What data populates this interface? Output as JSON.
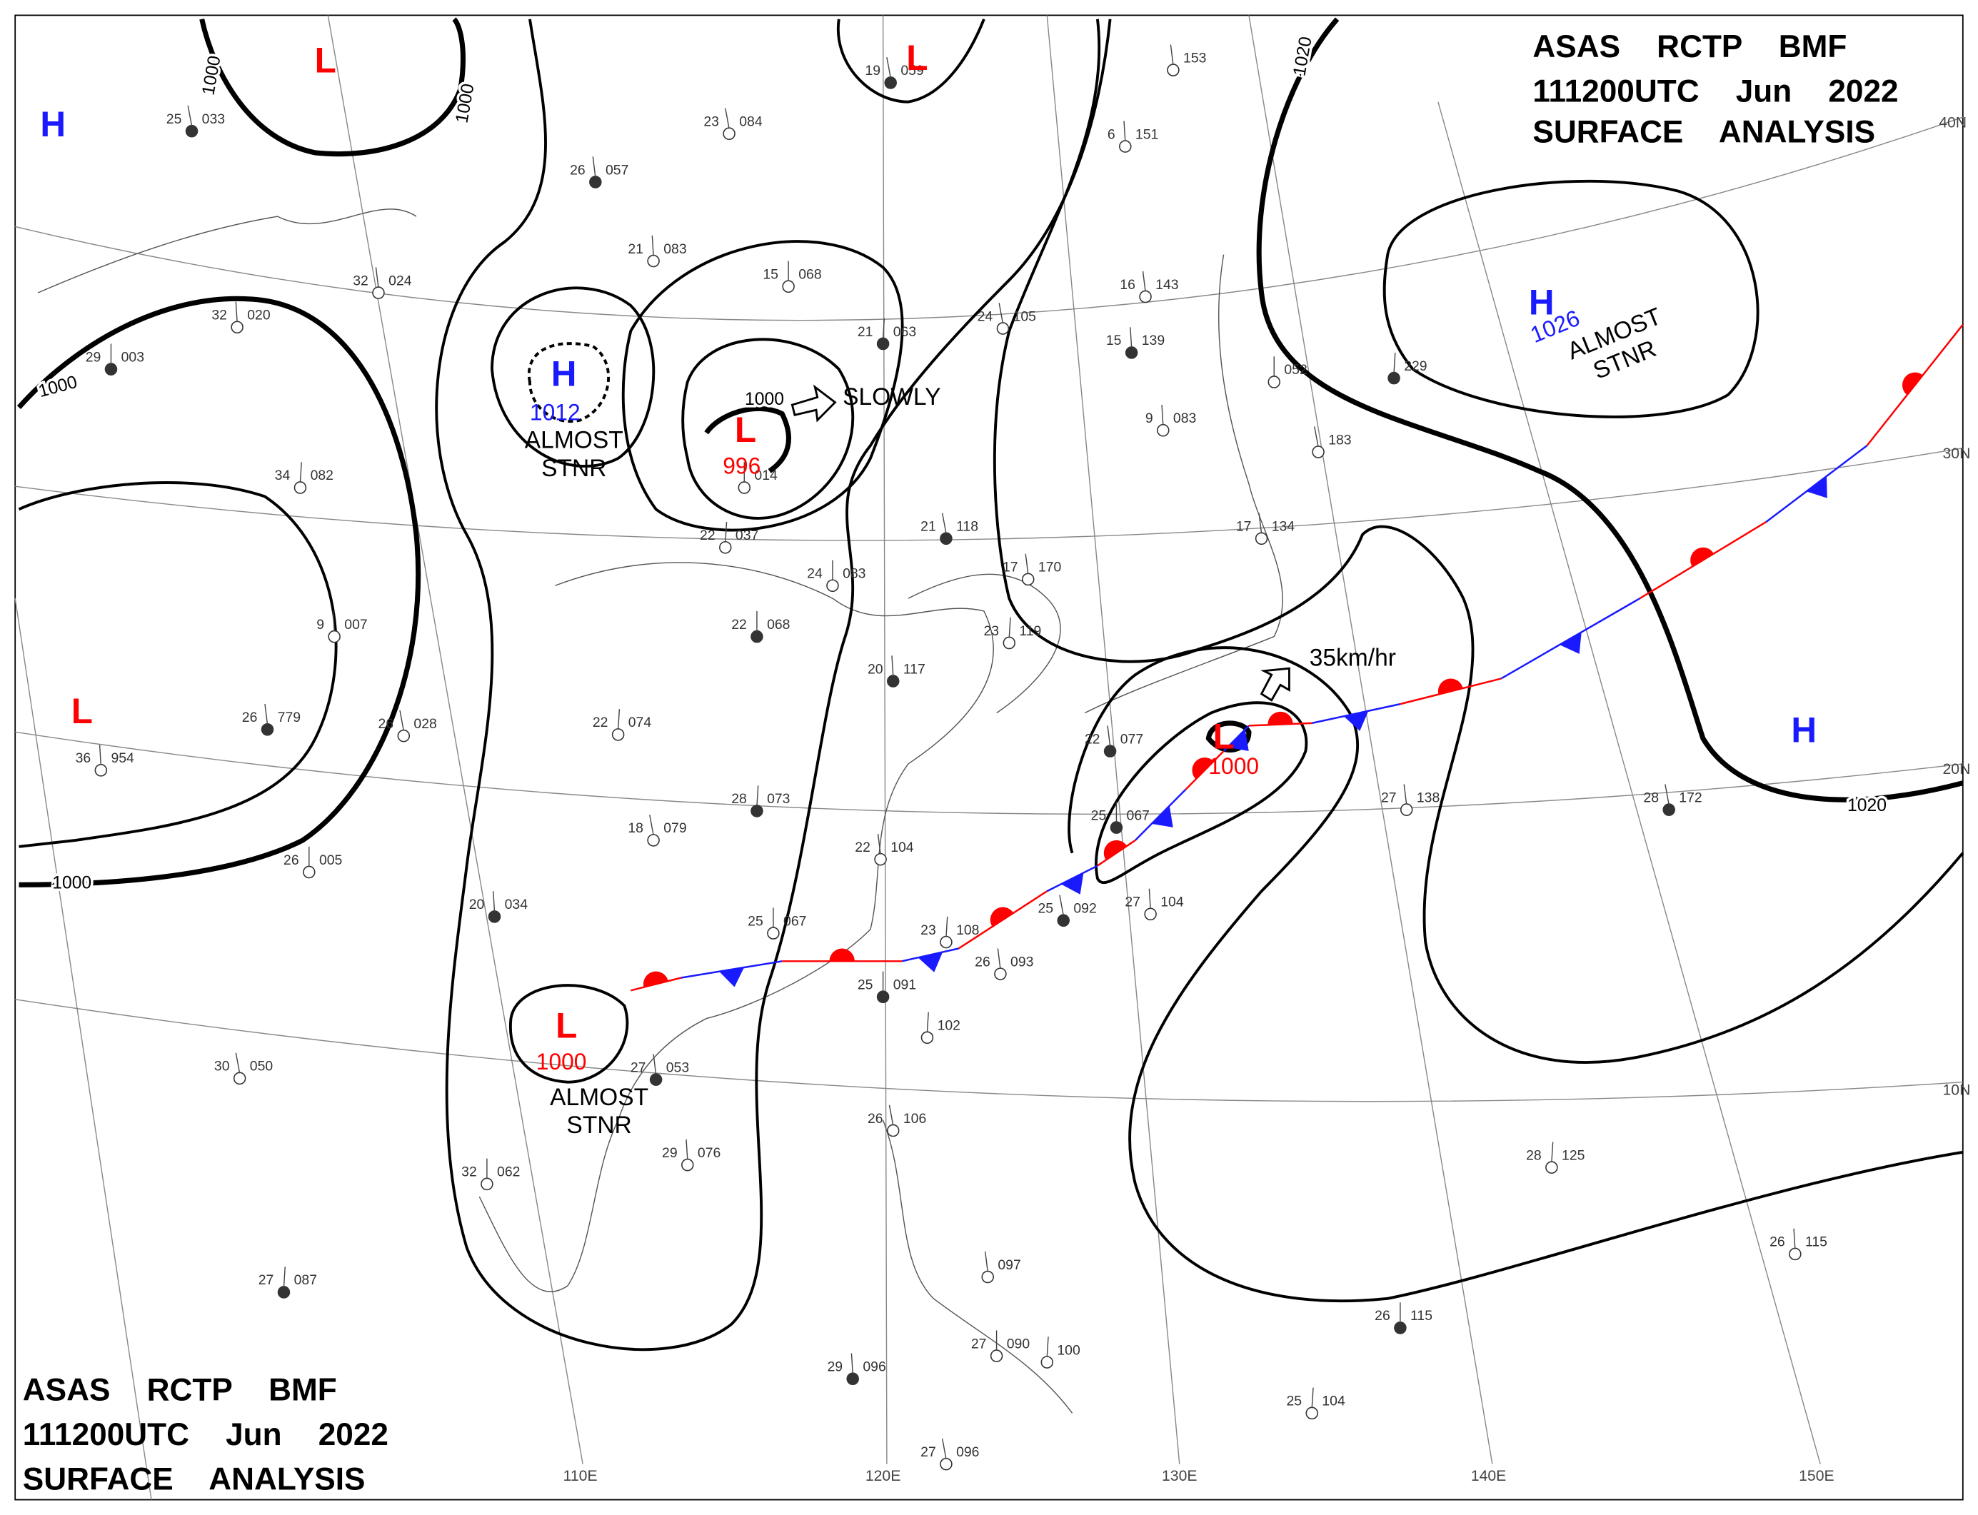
{
  "header": {
    "line1": "ASAS RCTP BMF",
    "line2": "111200UTC Jun 2022",
    "line3": "SURFACE ANALYSIS"
  },
  "systems": [
    {
      "symbol": "H"
    },
    {
      "symbol": "L"
    },
    {
      "symbol": "L"
    },
    {
      "symbol": "H",
      "pressure": 1012,
      "note_lines": [
        "ALMOST",
        "STNR"
      ]
    },
    {
      "symbol": "L",
      "pressure": 996,
      "motion": "SLOWLY"
    },
    {
      "symbol": "L"
    },
    {
      "symbol": "L",
      "pressure": 1000,
      "note_lines": [
        "ALMOST",
        "STNR"
      ]
    },
    {
      "symbol": "L",
      "pressure": 1000,
      "motion": "35km/hr"
    },
    {
      "symbol": "H",
      "pressure": 1026,
      "note_lines": [
        "ALMOST",
        "STNR"
      ]
    },
    {
      "symbol": "H"
    }
  ],
  "isobar_labels": [
    1000,
    1000,
    1000,
    1000,
    1000,
    1020,
    1020
  ],
  "latitude_labels": [
    "40N",
    "30N",
    "20N",
    "10N"
  ],
  "longitude_labels": [
    "110E",
    "120E",
    "130E",
    "140E",
    "150E"
  ],
  "stations": [
    {
      "temp": 25,
      "pressure": "033"
    },
    {
      "temp": 32,
      "pressure": "024"
    },
    {
      "temp": 32,
      "pressure": "020"
    },
    {
      "temp": 29,
      "pressure": "003"
    },
    {
      "temp": 34,
      "pressure": "082"
    },
    {
      "temp": 23,
      "pressure": "084"
    },
    {
      "temp": 26,
      "pressure": "057"
    },
    {
      "temp": 21,
      "pressure": "083"
    },
    {
      "temp": 15,
      "pressure": "068"
    },
    {
      "temp": 21,
      "pressure": "063"
    },
    {
      "temp": 24,
      "pressure": "105"
    },
    {
      "temp": 16,
      "pressure": "143"
    },
    {
      "temp": 15,
      "pressure": "139"
    },
    {
      "pressure": "014"
    },
    {
      "temp": 22,
      "pressure": "037"
    },
    {
      "temp": 21,
      "pressure": "118"
    },
    {
      "temp": 17,
      "pressure": "170"
    },
    {
      "temp": 9,
      "pressure": "007"
    },
    {
      "temp": 22,
      "pressure": "068"
    },
    {
      "temp": 22,
      "pressure": "074"
    },
    {
      "temp": 26,
      "pressure": "028"
    },
    {
      "temp": 26,
      "pressure": "779"
    },
    {
      "temp": 36,
      "pressure": "954"
    },
    {
      "temp": 26,
      "pressure": "005"
    },
    {
      "temp": 28,
      "pressure": "073"
    },
    {
      "temp": 18,
      "pressure": "079"
    },
    {
      "temp": 22,
      "pressure": "104"
    },
    {
      "temp": 20,
      "pressure": "034"
    },
    {
      "temp": 25,
      "pressure": "067"
    },
    {
      "temp": 23,
      "pressure": "108"
    },
    {
      "temp": 25,
      "pressure": "092"
    },
    {
      "temp": 26,
      "pressure": "093"
    },
    {
      "temp": 27,
      "pressure": "104"
    },
    {
      "temp": 25,
      "pressure": "091"
    },
    {
      "pressure": "102"
    },
    {
      "temp": 30,
      "pressure": "050"
    },
    {
      "temp": 27,
      "pressure": "053"
    },
    {
      "temp": 29,
      "pressure": "076"
    },
    {
      "temp": 32,
      "pressure": "062"
    },
    {
      "temp": 27,
      "pressure": "087"
    },
    {
      "temp": 26,
      "pressure": "106"
    },
    {
      "pressure": "097"
    },
    {
      "temp": 29,
      "pressure": "096"
    },
    {
      "temp": 27,
      "pressure": "090"
    },
    {
      "temp": 28,
      "pressure": "125"
    },
    {
      "temp": 28,
      "pressure": "172"
    },
    {
      "temp": 27,
      "pressure": "138"
    },
    {
      "temp": 26,
      "pressure": "115"
    },
    {
      "temp": 26,
      "pressure": "115"
    },
    {
      "temp": 25,
      "pressure": "104"
    },
    {
      "temp": 27,
      "pressure": "096"
    },
    {
      "temp": 22,
      "pressure": "077"
    },
    {
      "temp": 9,
      "pressure": "083"
    },
    {
      "pressure": "052"
    },
    {
      "pressure": "229"
    },
    {
      "pressure": "183"
    },
    {
      "temp": 17,
      "pressure": "134"
    },
    {
      "temp": 20,
      "pressure": "117"
    },
    {
      "temp": 24,
      "pressure": "083"
    },
    {
      "temp": 23,
      "pressure": "119"
    },
    {
      "temp": 19,
      "pressure": "059"
    },
    {
      "pressure": "153"
    },
    {
      "temp": 6,
      "pressure": "151"
    },
    {
      "temp": 25,
      "pressure": "067"
    },
    {
      "pressure": "100"
    }
  ]
}
